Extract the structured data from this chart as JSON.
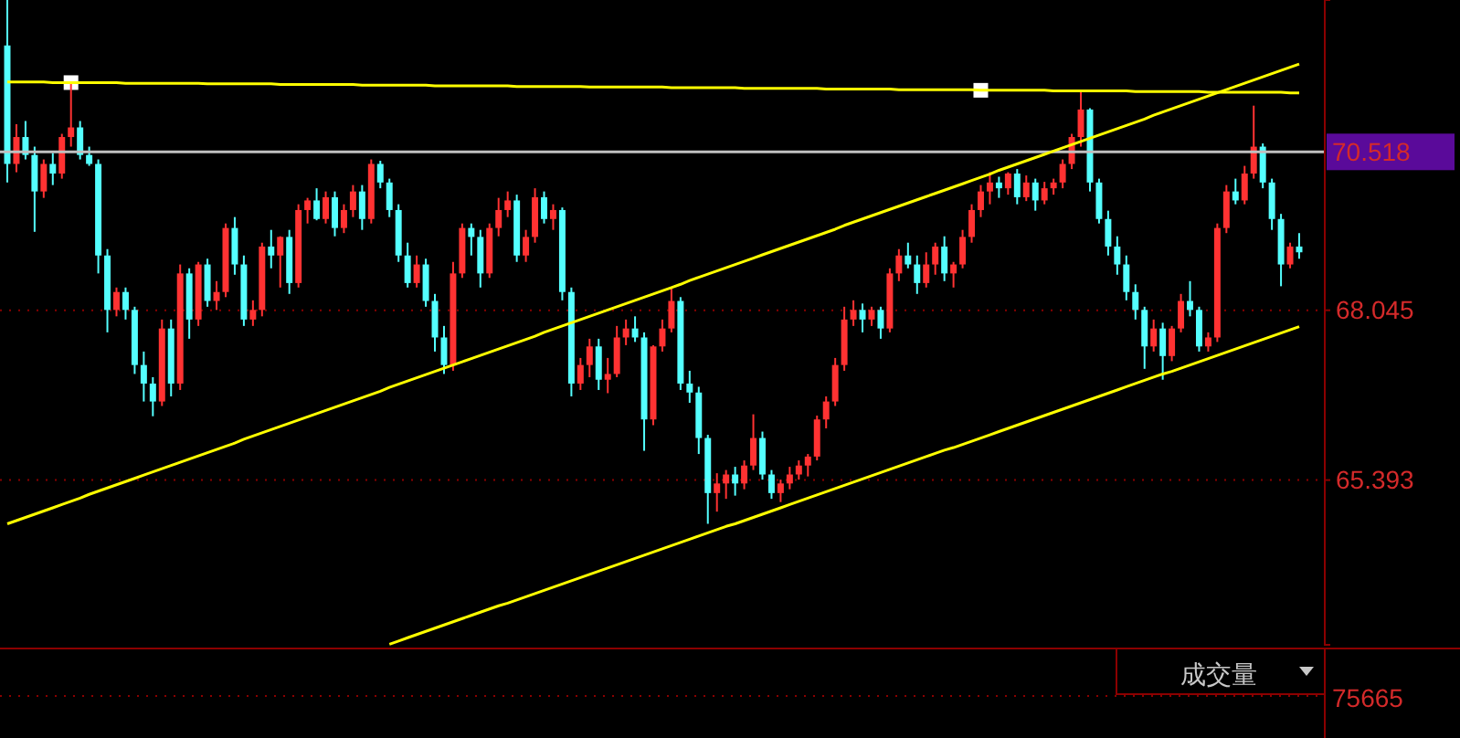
{
  "chart_data": {
    "type": "candlestick",
    "categories": [
      null,
      null,
      null,
      null,
      null,
      null,
      null,
      null,
      null,
      null,
      null,
      null,
      null,
      null,
      null,
      null,
      null,
      null,
      null,
      null,
      null,
      null,
      null,
      null,
      null,
      null,
      null,
      null,
      null,
      null,
      null,
      null,
      null,
      null,
      null,
      null,
      null,
      null,
      null,
      null,
      null,
      null,
      null,
      null,
      null,
      null,
      null,
      null,
      null,
      null,
      null,
      null,
      null,
      null,
      null,
      null,
      null,
      null,
      null,
      null,
      null,
      null,
      null,
      null,
      null,
      null,
      null,
      null,
      null,
      null,
      null,
      null,
      null,
      null,
      null,
      null,
      null,
      null,
      null,
      null,
      null,
      null,
      null,
      null,
      null,
      null,
      null,
      null,
      null,
      null,
      null,
      null,
      null,
      null,
      null,
      null,
      null,
      null,
      null,
      null,
      null,
      null,
      null,
      null,
      null,
      null,
      null,
      null,
      null,
      null,
      null,
      null,
      null,
      null,
      null,
      null,
      null,
      null,
      null,
      null,
      null,
      null,
      null,
      null,
      null,
      null,
      null,
      null,
      null,
      null,
      null,
      null,
      null,
      null,
      null,
      null,
      null,
      null,
      null,
      null,
      null,
      null,
      null
    ],
    "ohlc": [
      [
        72.18,
        72.89,
        70.04,
        70.33
      ],
      [
        70.33,
        70.95,
        70.2,
        70.75
      ],
      [
        70.75,
        71.0,
        70.4,
        70.47
      ],
      [
        70.47,
        70.6,
        69.27,
        69.9
      ],
      [
        69.9,
        70.4,
        69.8,
        70.33
      ],
      [
        70.33,
        70.5,
        70.0,
        70.18
      ],
      [
        70.18,
        70.8,
        70.1,
        70.75
      ],
      [
        70.75,
        71.61,
        70.6,
        70.9
      ],
      [
        70.9,
        71.0,
        70.4,
        70.47
      ],
      [
        70.47,
        70.6,
        70.3,
        70.33
      ],
      [
        70.33,
        70.4,
        68.62,
        68.9
      ],
      [
        68.9,
        69.0,
        67.7,
        68.05
      ],
      [
        68.05,
        68.4,
        67.95,
        68.33
      ],
      [
        68.33,
        68.4,
        67.9,
        68.05
      ],
      [
        68.05,
        68.1,
        67.05,
        67.19
      ],
      [
        67.19,
        67.4,
        66.62,
        66.9
      ],
      [
        66.9,
        67.0,
        66.39,
        66.62
      ],
      [
        66.62,
        67.9,
        66.55,
        67.76
      ],
      [
        67.76,
        67.9,
        66.7,
        66.9
      ],
      [
        66.9,
        68.76,
        66.8,
        68.62
      ],
      [
        68.62,
        68.7,
        67.6,
        67.9
      ],
      [
        67.9,
        68.8,
        67.8,
        68.76
      ],
      [
        68.76,
        68.85,
        68.1,
        68.19
      ],
      [
        68.19,
        68.5,
        68.05,
        68.33
      ],
      [
        68.33,
        69.4,
        68.25,
        69.33
      ],
      [
        69.33,
        69.5,
        68.6,
        68.76
      ],
      [
        68.76,
        68.9,
        67.8,
        67.9
      ],
      [
        67.9,
        68.2,
        67.8,
        68.05
      ],
      [
        68.05,
        69.1,
        67.95,
        69.04
      ],
      [
        69.04,
        69.3,
        68.7,
        68.9
      ],
      [
        68.9,
        69.2,
        68.4,
        69.19
      ],
      [
        69.19,
        69.3,
        68.3,
        68.47
      ],
      [
        68.47,
        69.7,
        68.4,
        69.61
      ],
      [
        69.61,
        69.8,
        69.4,
        69.76
      ],
      [
        69.76,
        69.95,
        69.45,
        69.47
      ],
      [
        69.47,
        69.9,
        69.4,
        69.81
      ],
      [
        69.81,
        69.9,
        69.2,
        69.33
      ],
      [
        69.33,
        69.7,
        69.25,
        69.61
      ],
      [
        69.61,
        70.0,
        69.5,
        69.9
      ],
      [
        69.9,
        70.0,
        69.3,
        69.47
      ],
      [
        69.47,
        70.4,
        69.4,
        70.33
      ],
      [
        70.33,
        70.38,
        69.95,
        70.04
      ],
      [
        70.04,
        70.1,
        69.5,
        69.61
      ],
      [
        69.61,
        69.7,
        68.8,
        68.9
      ],
      [
        68.9,
        69.1,
        68.4,
        68.47
      ],
      [
        68.47,
        68.9,
        68.4,
        68.76
      ],
      [
        68.76,
        68.85,
        68.1,
        68.19
      ],
      [
        68.19,
        68.3,
        67.4,
        67.62
      ],
      [
        67.62,
        67.8,
        67.05,
        67.19
      ],
      [
        67.19,
        68.8,
        67.1,
        68.62
      ],
      [
        68.62,
        69.4,
        68.55,
        69.33
      ],
      [
        69.33,
        69.4,
        68.9,
        69.19
      ],
      [
        69.19,
        69.3,
        68.4,
        68.62
      ],
      [
        68.62,
        69.4,
        68.55,
        69.33
      ],
      [
        69.33,
        69.8,
        69.2,
        69.61
      ],
      [
        69.61,
        69.9,
        69.5,
        69.76
      ],
      [
        69.76,
        69.85,
        68.8,
        68.9
      ],
      [
        68.9,
        69.3,
        68.8,
        69.19
      ],
      [
        69.19,
        69.95,
        69.1,
        69.81
      ],
      [
        69.81,
        69.9,
        69.4,
        69.47
      ],
      [
        69.47,
        69.7,
        69.3,
        69.61
      ],
      [
        69.61,
        69.65,
        68.2,
        68.33
      ],
      [
        68.33,
        68.4,
        66.7,
        66.9
      ],
      [
        66.9,
        67.3,
        66.8,
        67.19
      ],
      [
        67.19,
        67.6,
        67.0,
        67.48
      ],
      [
        67.48,
        67.6,
        66.8,
        66.96
      ],
      [
        66.96,
        67.3,
        66.75,
        67.05
      ],
      [
        67.05,
        67.8,
        67.0,
        67.62
      ],
      [
        67.62,
        67.9,
        67.5,
        67.76
      ],
      [
        67.76,
        67.95,
        67.55,
        67.62
      ],
      [
        67.62,
        67.7,
        65.85,
        66.34
      ],
      [
        66.34,
        67.5,
        66.25,
        67.48
      ],
      [
        67.48,
        67.9,
        67.4,
        67.76
      ],
      [
        67.76,
        68.39,
        67.7,
        68.19
      ],
      [
        68.19,
        68.25,
        66.8,
        66.9
      ],
      [
        66.9,
        67.1,
        66.6,
        66.76
      ],
      [
        66.76,
        66.85,
        65.8,
        66.05
      ],
      [
        66.05,
        66.1,
        64.71,
        65.19
      ],
      [
        65.19,
        65.5,
        64.9,
        65.34
      ],
      [
        65.34,
        65.55,
        65.1,
        65.48
      ],
      [
        65.48,
        65.6,
        65.15,
        65.34
      ],
      [
        65.34,
        65.7,
        65.25,
        65.62
      ],
      [
        65.62,
        66.42,
        65.55,
        66.05
      ],
      [
        66.05,
        66.15,
        65.4,
        65.48
      ],
      [
        65.48,
        65.55,
        65.1,
        65.19
      ],
      [
        65.19,
        65.4,
        65.05,
        65.34
      ],
      [
        65.34,
        65.6,
        65.25,
        65.48
      ],
      [
        65.48,
        65.7,
        65.4,
        65.62
      ],
      [
        65.62,
        65.8,
        65.45,
        65.76
      ],
      [
        65.76,
        66.4,
        65.7,
        66.34
      ],
      [
        66.34,
        66.7,
        66.2,
        66.62
      ],
      [
        66.62,
        67.3,
        66.55,
        67.19
      ],
      [
        67.19,
        68.1,
        67.1,
        67.9
      ],
      [
        67.9,
        68.2,
        67.8,
        68.05
      ],
      [
        68.05,
        68.15,
        67.7,
        67.9
      ],
      [
        67.9,
        68.1,
        67.8,
        68.05
      ],
      [
        68.05,
        68.1,
        67.6,
        67.76
      ],
      [
        67.76,
        68.7,
        67.7,
        68.62
      ],
      [
        68.62,
        69.0,
        68.5,
        68.9
      ],
      [
        68.9,
        69.1,
        68.7,
        68.76
      ],
      [
        68.76,
        68.9,
        68.3,
        68.47
      ],
      [
        68.47,
        68.95,
        68.4,
        68.76
      ],
      [
        68.76,
        69.1,
        68.6,
        69.04
      ],
      [
        69.04,
        69.2,
        68.5,
        68.62
      ],
      [
        68.62,
        68.8,
        68.4,
        68.76
      ],
      [
        68.76,
        69.3,
        68.7,
        69.19
      ],
      [
        69.19,
        69.7,
        69.1,
        69.61
      ],
      [
        69.61,
        70.0,
        69.5,
        69.9
      ],
      [
        69.9,
        70.2,
        69.7,
        70.04
      ],
      [
        70.04,
        70.13,
        69.8,
        69.95
      ],
      [
        69.95,
        70.2,
        69.85,
        70.18
      ],
      [
        70.18,
        70.25,
        69.7,
        69.81
      ],
      [
        69.81,
        70.15,
        69.75,
        70.04
      ],
      [
        70.04,
        70.1,
        69.6,
        69.76
      ],
      [
        69.76,
        70.05,
        69.7,
        69.95
      ],
      [
        69.95,
        70.1,
        69.85,
        70.04
      ],
      [
        70.04,
        70.4,
        69.95,
        70.33
      ],
      [
        70.33,
        70.8,
        70.25,
        70.75
      ],
      [
        70.75,
        71.47,
        70.6,
        71.18
      ],
      [
        71.18,
        71.2,
        69.9,
        70.04
      ],
      [
        70.04,
        70.1,
        69.4,
        69.47
      ],
      [
        69.47,
        69.6,
        68.9,
        69.04
      ],
      [
        69.04,
        69.2,
        68.6,
        68.76
      ],
      [
        68.76,
        68.9,
        68.2,
        68.33
      ],
      [
        68.33,
        68.45,
        67.9,
        68.05
      ],
      [
        68.05,
        68.1,
        67.13,
        67.48
      ],
      [
        67.48,
        67.9,
        67.4,
        67.76
      ],
      [
        67.76,
        67.85,
        66.96,
        67.33
      ],
      [
        67.33,
        67.8,
        67.25,
        67.76
      ],
      [
        67.76,
        68.3,
        67.7,
        68.19
      ],
      [
        68.19,
        68.5,
        67.95,
        68.05
      ],
      [
        68.05,
        68.1,
        67.4,
        67.48
      ],
      [
        67.48,
        67.7,
        67.4,
        67.62
      ],
      [
        67.62,
        69.4,
        67.55,
        69.33
      ],
      [
        69.33,
        70.0,
        69.25,
        69.9
      ],
      [
        69.9,
        70.1,
        69.7,
        69.76
      ],
      [
        69.76,
        70.3,
        69.7,
        70.18
      ],
      [
        70.18,
        71.24,
        70.1,
        70.6
      ],
      [
        70.6,
        70.65,
        69.95,
        70.04
      ],
      [
        70.04,
        70.1,
        69.3,
        69.47
      ],
      [
        69.47,
        69.55,
        68.42,
        68.76
      ],
      [
        68.76,
        69.1,
        68.7,
        69.04
      ],
      [
        69.04,
        69.25,
        68.85,
        68.95
      ]
    ],
    "colors": [
      "#54ffff",
      "#ff3232",
      "#54ffff",
      "#54ffff",
      "#ff3232",
      "#54ffff",
      "#ff3232",
      "#ff3232",
      "#54ffff",
      "#54ffff",
      "#54ffff",
      "#54ffff",
      "#ff3232",
      "#54ffff",
      "#54ffff",
      "#54ffff",
      "#54ffff",
      "#ff3232",
      "#54ffff",
      "#ff3232",
      "#54ffff",
      "#ff3232",
      "#54ffff",
      "#ff3232",
      "#ff3232",
      "#54ffff",
      "#54ffff",
      "#ff3232",
      "#ff3232",
      "#54ffff",
      "#ff3232",
      "#54ffff",
      "#ff3232",
      "#ff3232",
      "#54ffff",
      "#ff3232",
      "#54ffff",
      "#ff3232",
      "#ff3232",
      "#54ffff",
      "#ff3232",
      "#54ffff",
      "#54ffff",
      "#54ffff",
      "#54ffff",
      "#ff3232",
      "#54ffff",
      "#54ffff",
      "#54ffff",
      "#ff3232",
      "#ff3232",
      "#54ffff",
      "#54ffff",
      "#ff3232",
      "#ff3232",
      "#ff3232",
      "#54ffff",
      "#ff3232",
      "#ff3232",
      "#54ffff",
      "#ff3232",
      "#54ffff",
      "#54ffff",
      "#ff3232",
      "#ff3232",
      "#54ffff",
      "#ff3232",
      "#ff3232",
      "#ff3232",
      "#54ffff",
      "#54ffff",
      "#ff3232",
      "#ff3232",
      "#ff3232",
      "#54ffff",
      "#54ffff",
      "#54ffff",
      "#54ffff",
      "#ff3232",
      "#ff3232",
      "#54ffff",
      "#ff3232",
      "#ff3232",
      "#54ffff",
      "#54ffff",
      "#ff3232",
      "#ff3232",
      "#ff3232",
      "#ff3232",
      "#ff3232",
      "#ff3232",
      "#ff3232",
      "#ff3232",
      "#ff3232",
      "#54ffff",
      "#ff3232",
      "#54ffff",
      "#ff3232",
      "#ff3232",
      "#54ffff",
      "#54ffff",
      "#ff3232",
      "#ff3232",
      "#54ffff",
      "#ff3232",
      "#ff3232",
      "#ff3232",
      "#ff3232",
      "#ff3232",
      "#54ffff",
      "#ff3232",
      "#54ffff",
      "#ff3232",
      "#54ffff",
      "#ff3232",
      "#ff3232",
      "#ff3232",
      "#ff3232",
      "#ff3232",
      "#54ffff",
      "#54ffff",
      "#54ffff",
      "#54ffff",
      "#54ffff",
      "#54ffff",
      "#54ffff",
      "#ff3232",
      "#54ffff",
      "#ff3232",
      "#ff3232",
      "#54ffff",
      "#54ffff",
      "#ff3232",
      "#ff3232",
      "#ff3232",
      "#54ffff",
      "#ff3232",
      "#ff3232",
      "#54ffff",
      "#54ffff",
      "#54ffff",
      "#ff3232",
      "#54ffff"
    ],
    "series": [
      {
        "type": "line",
        "color": "#ffff00",
        "values": [
          71.61,
          71.61,
          71.61,
          71.61,
          71.61,
          71.6,
          71.6,
          71.6,
          71.6,
          71.6,
          71.6,
          71.6,
          71.6,
          71.59,
          71.59,
          71.59,
          71.59,
          71.59,
          71.59,
          71.59,
          71.59,
          71.59,
          71.58,
          71.58,
          71.58,
          71.58,
          71.58,
          71.58,
          71.58,
          71.58,
          71.57,
          71.57,
          71.57,
          71.57,
          71.57,
          71.57,
          71.57,
          71.57,
          71.57,
          71.56,
          71.56,
          71.56,
          71.56,
          71.56,
          71.56,
          71.56,
          71.56,
          71.55,
          71.55,
          71.55,
          71.55,
          71.55,
          71.55,
          71.55,
          71.55,
          71.55,
          71.54,
          71.54,
          71.54,
          71.54,
          71.54,
          71.54,
          71.54,
          71.54,
          71.53,
          71.53,
          71.53,
          71.53,
          71.53,
          71.53,
          71.53,
          71.53,
          71.53,
          71.52,
          71.52,
          71.52,
          71.52,
          71.52,
          71.52,
          71.52,
          71.52,
          71.51,
          71.51,
          71.51,
          71.51,
          71.51,
          71.51,
          71.51,
          71.51,
          71.51,
          71.5,
          71.5,
          71.5,
          71.5,
          71.5,
          71.5,
          71.5,
          71.5,
          71.49,
          71.49,
          71.49,
          71.49,
          71.49,
          71.49,
          71.49,
          71.49,
          71.49,
          71.48,
          71.48,
          71.48,
          71.48,
          71.48,
          71.48,
          71.48,
          71.48,
          71.47,
          71.47,
          71.47,
          71.47,
          71.47,
          71.47,
          71.47,
          71.47,
          71.47,
          71.46,
          71.46,
          71.46,
          71.46,
          71.46,
          71.46,
          71.46,
          71.46,
          71.45,
          71.45,
          71.45,
          71.45,
          71.45,
          71.45,
          71.45,
          71.45,
          71.45,
          71.44,
          71.44
        ]
      },
      {
        "type": "line",
        "color": "#ffff00",
        "values": [
          64.71,
          64.76,
          64.81,
          64.86,
          64.91,
          64.96,
          65.01,
          65.06,
          65.11,
          65.17,
          65.22,
          65.27,
          65.32,
          65.37,
          65.42,
          65.47,
          65.52,
          65.57,
          65.62,
          65.67,
          65.72,
          65.77,
          65.82,
          65.87,
          65.92,
          65.97,
          66.03,
          66.08,
          66.13,
          66.18,
          66.23,
          66.28,
          66.33,
          66.38,
          66.43,
          66.48,
          66.53,
          66.58,
          66.63,
          66.68,
          66.73,
          66.78,
          66.84,
          66.89,
          66.94,
          66.99,
          67.04,
          67.09,
          67.14,
          67.19,
          67.24,
          67.29,
          67.34,
          67.39,
          67.44,
          67.49,
          67.54,
          67.59,
          67.64,
          67.7,
          67.75,
          67.8,
          67.85,
          67.9,
          67.95,
          68.0,
          68.05,
          68.1,
          68.15,
          68.2,
          68.25,
          68.3,
          68.35,
          68.4,
          68.45,
          68.51,
          68.56,
          68.61,
          68.66,
          68.71,
          68.76,
          68.81,
          68.86,
          68.91,
          68.96,
          69.01,
          69.06,
          69.11,
          69.16,
          69.21,
          69.26,
          69.31,
          69.37,
          69.42,
          69.47,
          69.52,
          69.57,
          69.62,
          69.67,
          69.72,
          69.77,
          69.82,
          69.87,
          69.92,
          69.97,
          70.02,
          70.07,
          70.12,
          70.17,
          70.23,
          70.28,
          70.33,
          70.38,
          70.43,
          70.48,
          70.53,
          70.58,
          70.63,
          70.68,
          70.73,
          70.78,
          70.83,
          70.88,
          70.93,
          70.98,
          71.03,
          71.09,
          71.14,
          71.19,
          71.24,
          71.29,
          71.34,
          71.39,
          71.44,
          71.49,
          71.54,
          71.59,
          71.64,
          71.69,
          71.74,
          71.79,
          71.84,
          71.89
        ]
      },
      {
        "type": "line",
        "color": "#ffff00",
        "values": [
          null,
          null,
          null,
          null,
          null,
          null,
          null,
          null,
          null,
          null,
          null,
          null,
          null,
          null,
          null,
          null,
          null,
          null,
          null,
          null,
          null,
          null,
          null,
          null,
          null,
          null,
          null,
          null,
          null,
          null,
          null,
          null,
          null,
          null,
          null,
          null,
          null,
          null,
          null,
          null,
          null,
          null,
          62.83,
          62.88,
          62.93,
          62.98,
          63.03,
          63.08,
          63.13,
          63.18,
          63.23,
          63.28,
          63.33,
          63.38,
          63.43,
          63.47,
          63.52,
          63.57,
          63.62,
          63.67,
          63.72,
          63.77,
          63.82,
          63.87,
          63.92,
          63.97,
          64.02,
          64.07,
          64.12,
          64.17,
          64.22,
          64.27,
          64.32,
          64.37,
          64.42,
          64.47,
          64.52,
          64.57,
          64.62,
          64.67,
          64.71,
          64.76,
          64.81,
          64.86,
          64.91,
          64.96,
          65.01,
          65.06,
          65.11,
          65.16,
          65.21,
          65.26,
          65.31,
          65.36,
          65.41,
          65.46,
          65.51,
          65.56,
          65.61,
          65.66,
          65.71,
          65.76,
          65.81,
          65.86,
          65.9,
          65.95,
          66.0,
          66.05,
          66.1,
          66.15,
          66.2,
          66.25,
          66.3,
          66.35,
          66.4,
          66.45,
          66.5,
          66.55,
          66.6,
          66.65,
          66.7,
          66.75,
          66.8,
          66.85,
          66.9,
          66.95,
          67.0,
          67.05,
          67.09,
          67.14,
          67.19,
          67.24,
          67.29,
          67.34,
          67.39,
          67.44,
          67.49,
          67.54,
          67.59,
          67.64,
          67.69,
          67.74,
          67.79
        ]
      }
    ],
    "ylim": [
      62.82,
      72.89
    ],
    "yticks": [
      65.393,
      68.045
    ],
    "grid": "y",
    "tick_labels": "y",
    "ref_lines": [
      {
        "axis": "y",
        "value": 70.518,
        "label": "70.518",
        "color": "#c0c0c0"
      }
    ],
    "annotations": [
      "成交量",
      "75665"
    ]
  }
}
